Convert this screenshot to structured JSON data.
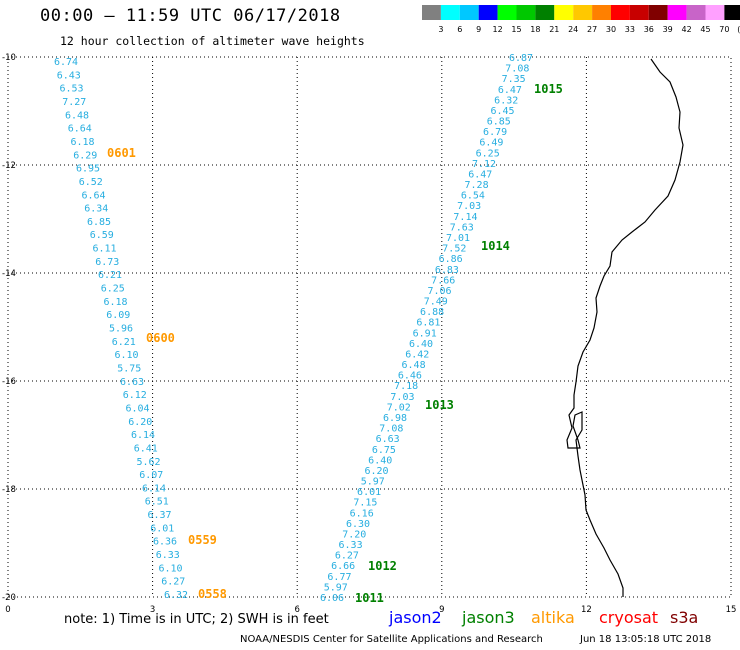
{
  "header": {
    "title": "00:00 – 11:59 UTC 06/17/2018",
    "subtitle": "12 hour collection of altimeter wave heights"
  },
  "color_scale": {
    "ticks": [
      "3",
      "6",
      "9",
      "12",
      "15",
      "18",
      "21",
      "24",
      "27",
      "30",
      "33",
      "36",
      "39",
      "42",
      "45",
      "70",
      "(ft)"
    ],
    "colors": [
      "#808080",
      "#00ffff",
      "#00c8ff",
      "#0000ff",
      "#00ff00",
      "#00c800",
      "#008000",
      "#ffff00",
      "#ffc800",
      "#ff8000",
      "#ff0000",
      "#c80000",
      "#800000",
      "#ff00ff",
      "#c864c8",
      "#ffa0ff",
      "#000000"
    ]
  },
  "map": {
    "x_ticks": [
      "0",
      "3",
      "6",
      "9",
      "12",
      "15"
    ],
    "y_ticks": [
      "-10",
      "-12",
      "-14",
      "-16",
      "-18",
      "-20"
    ]
  },
  "tracks": [
    {
      "satellite": "jason3",
      "values": [
        "6.74",
        "6.43",
        "6.53",
        "7.27",
        "6.48",
        "6.64",
        "6.18",
        "6.29",
        "6.95",
        "6.52",
        "6.64",
        "6.34",
        "6.85",
        "6.59",
        "6.11",
        "6.73",
        "6.21",
        "6.25",
        "6.18",
        "6.09",
        "5.96",
        "6.21",
        "6.10",
        "5.75",
        "6.63",
        "6.12",
        "6.04",
        "6.20",
        "6.14",
        "6.41",
        "5.62",
        "6.07",
        "6.14",
        "6.51",
        "6.37",
        "6.01",
        "6.36",
        "6.33",
        "6.10",
        "6.27",
        "6.32"
      ]
    },
    {
      "satellite": "jason3",
      "values": [
        "6.87",
        "7.08",
        "7.35",
        "6.47",
        "6.32",
        "6.45",
        "6.85",
        "6.79",
        "6.49",
        "6.25",
        "7.12",
        "6.47",
        "7.28",
        "6.54",
        "7.03",
        "7.14",
        "7.63",
        "7.01",
        "7.52",
        "6.86",
        "6.83",
        "7.66",
        "7.06",
        "7.49",
        "6.88",
        "6.81",
        "6.91",
        "6.40",
        "6.42",
        "6.48",
        "6.46",
        "7.18",
        "7.03",
        "7.02",
        "6.98",
        "7.08",
        "6.63",
        "6.75",
        "6.40",
        "6.20",
        "5.97",
        "6.01",
        "7.15",
        "6.16",
        "6.30",
        "7.20",
        "6.33",
        "6.27",
        "6.66",
        "6.77",
        "5.97",
        "6.06"
      ]
    }
  ],
  "pass_times": [
    {
      "label": "0601",
      "color": "#ff9900"
    },
    {
      "label": "0600",
      "color": "#ff9900"
    },
    {
      "label": "0559",
      "color": "#ff9900"
    },
    {
      "label": "0558",
      "color": "#ff9900"
    },
    {
      "label": "1015",
      "color": "#008000"
    },
    {
      "label": "1014",
      "color": "#008000"
    },
    {
      "label": "1013",
      "color": "#008000"
    },
    {
      "label": "1012",
      "color": "#008000"
    },
    {
      "label": "1011",
      "color": "#008000"
    }
  ],
  "footer": {
    "note": "note: 1) Time is in UTC; 2) SWH is in feet",
    "satellites": [
      {
        "name": "jason2",
        "color": "#0000ff"
      },
      {
        "name": "jason3",
        "color": "#008000"
      },
      {
        "name": "altika",
        "color": "#ff9900"
      },
      {
        "name": "cryosat",
        "color": "#ff0000"
      },
      {
        "name": "s3a",
        "color": "#800000"
      }
    ],
    "credit": "NOAA/NESDIS Center for Satellite Applications and Research",
    "issued": "Jun 18 13:05:18 UTC 2018"
  }
}
